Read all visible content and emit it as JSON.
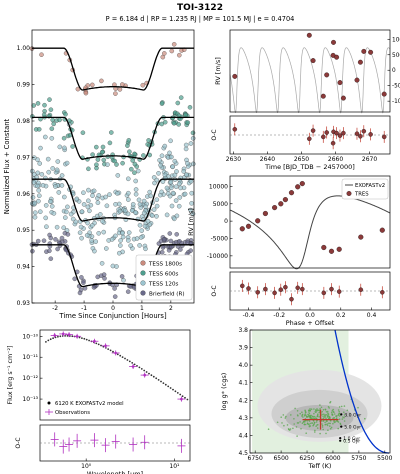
{
  "title": "TOI-3122",
  "subtitle": "P = 6.184 d | RP = 1.235 RJ | MP = 101.5 MJ | e = 0.4704",
  "chart_data": [
    {
      "id": "transit",
      "type": "scatter",
      "xlabel": "Time Since Conjunction [Hours]",
      "ylabel": "Normalized Flux + Constant",
      "xlim": [
        -2.8,
        2.8
      ],
      "ylim": [
        0.93,
        1.005
      ],
      "xticks": [
        -2,
        -1,
        0,
        1,
        2
      ],
      "yticks": [
        0.93,
        0.94,
        0.95,
        0.96,
        0.97,
        0.98,
        0.99,
        1.0
      ],
      "ytick_labels": [
        "0.93",
        "0.94",
        "0.95",
        "0.96",
        "0.97",
        "0.98",
        "0.99",
        "1.00"
      ],
      "legend_position": "lower-right",
      "depth": 0.0115,
      "ingress_hours": [
        1.05,
        1.7
      ],
      "series": [
        {
          "name": "TESS 1800s",
          "offset": 1.0,
          "scatter": 0.0012,
          "n": 28,
          "color": "#c98b7e"
        },
        {
          "name": "TESS 600s",
          "offset": 0.981,
          "scatter": 0.0022,
          "n": 110,
          "color": "#4f9f8f"
        },
        {
          "name": "TESS 120s",
          "offset": 0.964,
          "scatter": 0.0055,
          "n": 320,
          "color": "#9cc4cf"
        },
        {
          "name": "Brierfield (R)",
          "offset": 0.946,
          "scatter": 0.0016,
          "n": 120,
          "color": "#6a6a8a"
        }
      ]
    },
    {
      "id": "rv_time",
      "type": "scatter",
      "xlabel": "Time [BJD_TDB − 2457000]",
      "ylabel": "RV [m/s]",
      "xlim": [
        2629,
        2676
      ],
      "ylim": [
        -13500,
        13000
      ],
      "xticks": [
        2630,
        2640,
        2650,
        2660,
        2670
      ],
      "yticks": [
        -10000,
        -5000,
        0,
        5000,
        10000
      ],
      "residual_ylabel": "O-C",
      "points": [
        {
          "x": 2630.4,
          "y": -2000,
          "res": 900
        },
        {
          "x": 2652.3,
          "y": 11300,
          "res": -600
        },
        {
          "x": 2653.4,
          "y": 3100,
          "res": 700
        },
        {
          "x": 2656.4,
          "y": -8400,
          "res": -300
        },
        {
          "x": 2657.4,
          "y": -1500,
          "res": 400
        },
        {
          "x": 2659.3,
          "y": 4800,
          "res": -1300
        },
        {
          "x": 2659.4,
          "y": 9000,
          "res": 500
        },
        {
          "x": 2660.3,
          "y": 4200,
          "res": 300
        },
        {
          "x": 2661.3,
          "y": -4000,
          "res": -100
        },
        {
          "x": 2662.3,
          "y": -9000,
          "res": 300
        },
        {
          "x": 2666.3,
          "y": -3200,
          "res": 200
        },
        {
          "x": 2667.3,
          "y": 2600,
          "res": -200
        },
        {
          "x": 2668.3,
          "y": 6100,
          "res": 600
        },
        {
          "x": 2670.3,
          "y": 5800,
          "res": 100
        },
        {
          "x": 2674.3,
          "y": -7700,
          "res": -300
        }
      ]
    },
    {
      "id": "rv_phase",
      "type": "line",
      "xlabel": "Phase + Offset",
      "ylabel": "RV [m/s]",
      "xlim": [
        -0.52,
        0.52
      ],
      "ylim": [
        -13500,
        13000
      ],
      "xticks": [
        -0.4,
        -0.2,
        0.0,
        0.2,
        0.4
      ],
      "xtick_labels": [
        "-0.4",
        "-0.2",
        "0.0",
        "0.2",
        "0.4"
      ],
      "yticks": [
        -10000,
        -5000,
        0,
        5000,
        10000
      ],
      "residual_ylabel": "O-C",
      "legend": [
        "EXOFASTv2",
        "TRES"
      ],
      "legend_position": "top-right",
      "points": [
        {
          "x": -0.44,
          "y": -2200,
          "res": 800
        },
        {
          "x": -0.4,
          "y": -1500,
          "res": 400
        },
        {
          "x": -0.34,
          "y": 100,
          "res": -200
        },
        {
          "x": -0.29,
          "y": 2200,
          "res": 300
        },
        {
          "x": -0.23,
          "y": 3900,
          "res": -300
        },
        {
          "x": -0.19,
          "y": 5000,
          "res": 200
        },
        {
          "x": -0.16,
          "y": 6200,
          "res": 600
        },
        {
          "x": -0.12,
          "y": 8200,
          "res": -1300
        },
        {
          "x": -0.08,
          "y": 9900,
          "res": 500
        },
        {
          "x": -0.05,
          "y": 10800,
          "res": 300
        },
        {
          "x": 0.09,
          "y": -7600,
          "res": -300
        },
        {
          "x": 0.14,
          "y": -8700,
          "res": 300
        },
        {
          "x": 0.19,
          "y": -8100,
          "res": -100
        },
        {
          "x": 0.33,
          "y": -4600,
          "res": 200
        },
        {
          "x": 0.47,
          "y": -2600,
          "res": -200
        }
      ]
    },
    {
      "id": "sed",
      "type": "scatter",
      "xlabel": "Wavelength [μm]",
      "ylabel": "Flux [erg s⁻¹ cm⁻²]",
      "xscale": "log",
      "yscale": "log",
      "xlim": [
        0.3,
        15
      ],
      "ylim": [
        1e-14,
        2e-10
      ],
      "ytick_labels": [
        "10⁻¹⁰",
        "10⁻¹¹",
        "10⁻¹²",
        "10⁻¹³"
      ],
      "xtick_labels": [
        "10⁰",
        "10¹"
      ],
      "residual_ylabel": "O-C",
      "legend": [
        "6120 K EXOFASTv2 model",
        "Observations"
      ],
      "legend_position": "lower-left",
      "points": [
        {
          "x": 0.44,
          "y": 1.1e-10,
          "res": 0.05
        },
        {
          "x": 0.55,
          "y": 1.3e-10,
          "res": -0.05
        },
        {
          "x": 0.64,
          "y": 1.2e-10,
          "res": -0.02
        },
        {
          "x": 0.79,
          "y": 1e-10,
          "res": 0.03
        },
        {
          "x": 1.24,
          "y": 5.8e-11,
          "res": 0.04
        },
        {
          "x": 1.66,
          "y": 3.5e-11,
          "res": -0.03
        },
        {
          "x": 2.16,
          "y": 1.6e-11,
          "res": 0.02
        },
        {
          "x": 3.4,
          "y": 3.6e-12,
          "res": -0.02
        },
        {
          "x": 4.6,
          "y": 1.4e-12,
          "res": 0.01
        },
        {
          "x": 12.0,
          "y": 1e-13,
          "res": -0.04
        }
      ]
    },
    {
      "id": "hr",
      "type": "scatter",
      "xlabel": "Teff (K)",
      "ylabel": "log g* (cgs)",
      "xlim": [
        6800,
        5450
      ],
      "ylim": [
        4.5,
        3.8
      ],
      "xticks": [
        6750,
        6500,
        6250,
        6000,
        5750,
        5500
      ],
      "yticks": [
        3.8,
        3.9,
        4.0,
        4.1,
        4.2,
        4.3,
        4.4,
        4.5
      ],
      "ytick_labels": [
        "3.8",
        "3.9",
        "4.0",
        "4.1",
        "4.2",
        "4.3",
        "4.4",
        "4.5"
      ],
      "best_fit": {
        "teff": 6120,
        "logg": 4.31
      },
      "age_labels": [
        "3.0 Gyr",
        "5.0 Gyr",
        "1.0 Gyr",
        "0.5 Gyr"
      ]
    }
  ]
}
